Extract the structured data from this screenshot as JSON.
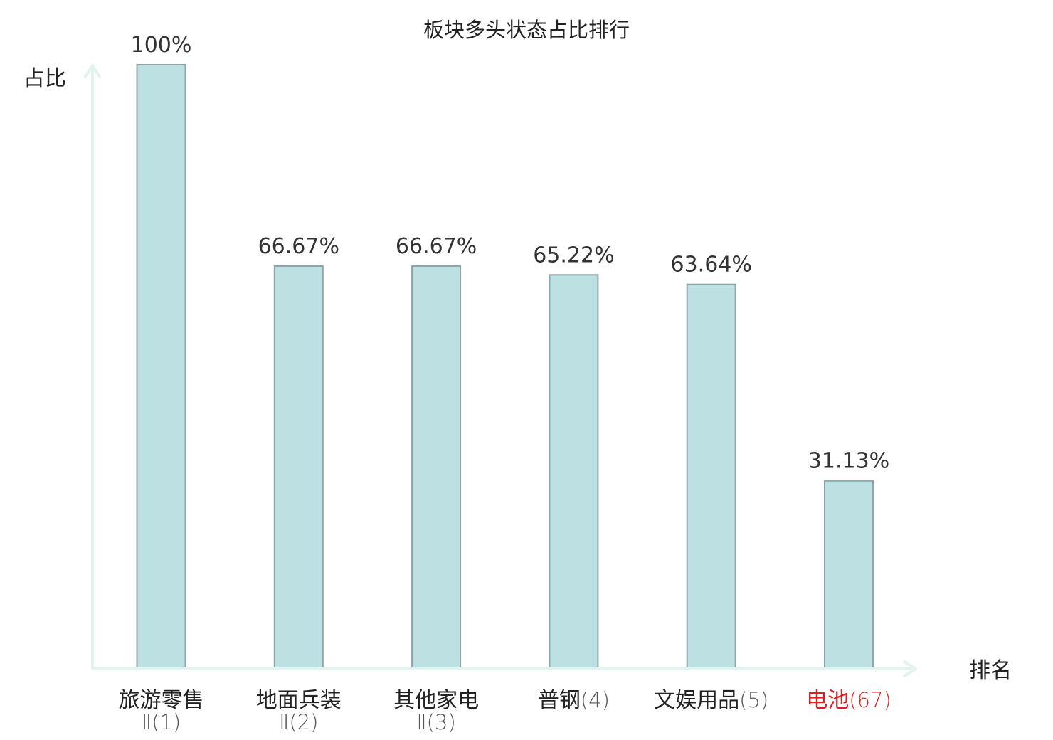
{
  "chart_data": {
    "type": "bar",
    "title": "板块多头状态占比排行",
    "ylabel": "占比",
    "xlabel": "排名",
    "ylim": [
      0,
      100
    ],
    "grid": false,
    "colors": {
      "bar_fill": "#bde0e3",
      "bar_stroke": "#8aa6a9",
      "axis": "#e3f3f0",
      "highlight": "#e02020"
    },
    "categories": [
      {
        "line1": "旅游零售",
        "line1_suffix": "",
        "line2": "Ⅱ(1)",
        "highlight": false
      },
      {
        "line1": "地面兵装",
        "line1_suffix": "",
        "line2": "Ⅱ(2)",
        "highlight": false
      },
      {
        "line1": "其他家电",
        "line1_suffix": "",
        "line2": "Ⅱ(3)",
        "highlight": false
      },
      {
        "line1": "普钢",
        "line1_suffix": "(4)",
        "line2": "",
        "highlight": false
      },
      {
        "line1": "文娱用品",
        "line1_suffix": "(5)",
        "line2": "",
        "highlight": false
      },
      {
        "line1": "电池",
        "line1_suffix": "(67)",
        "line2": "",
        "highlight": true
      }
    ],
    "values": [
      100,
      66.67,
      66.67,
      65.22,
      63.64,
      31.13
    ],
    "data_labels": [
      "100%",
      "66.67%",
      "66.67%",
      "65.22%",
      "63.64%",
      "31.13%"
    ]
  }
}
